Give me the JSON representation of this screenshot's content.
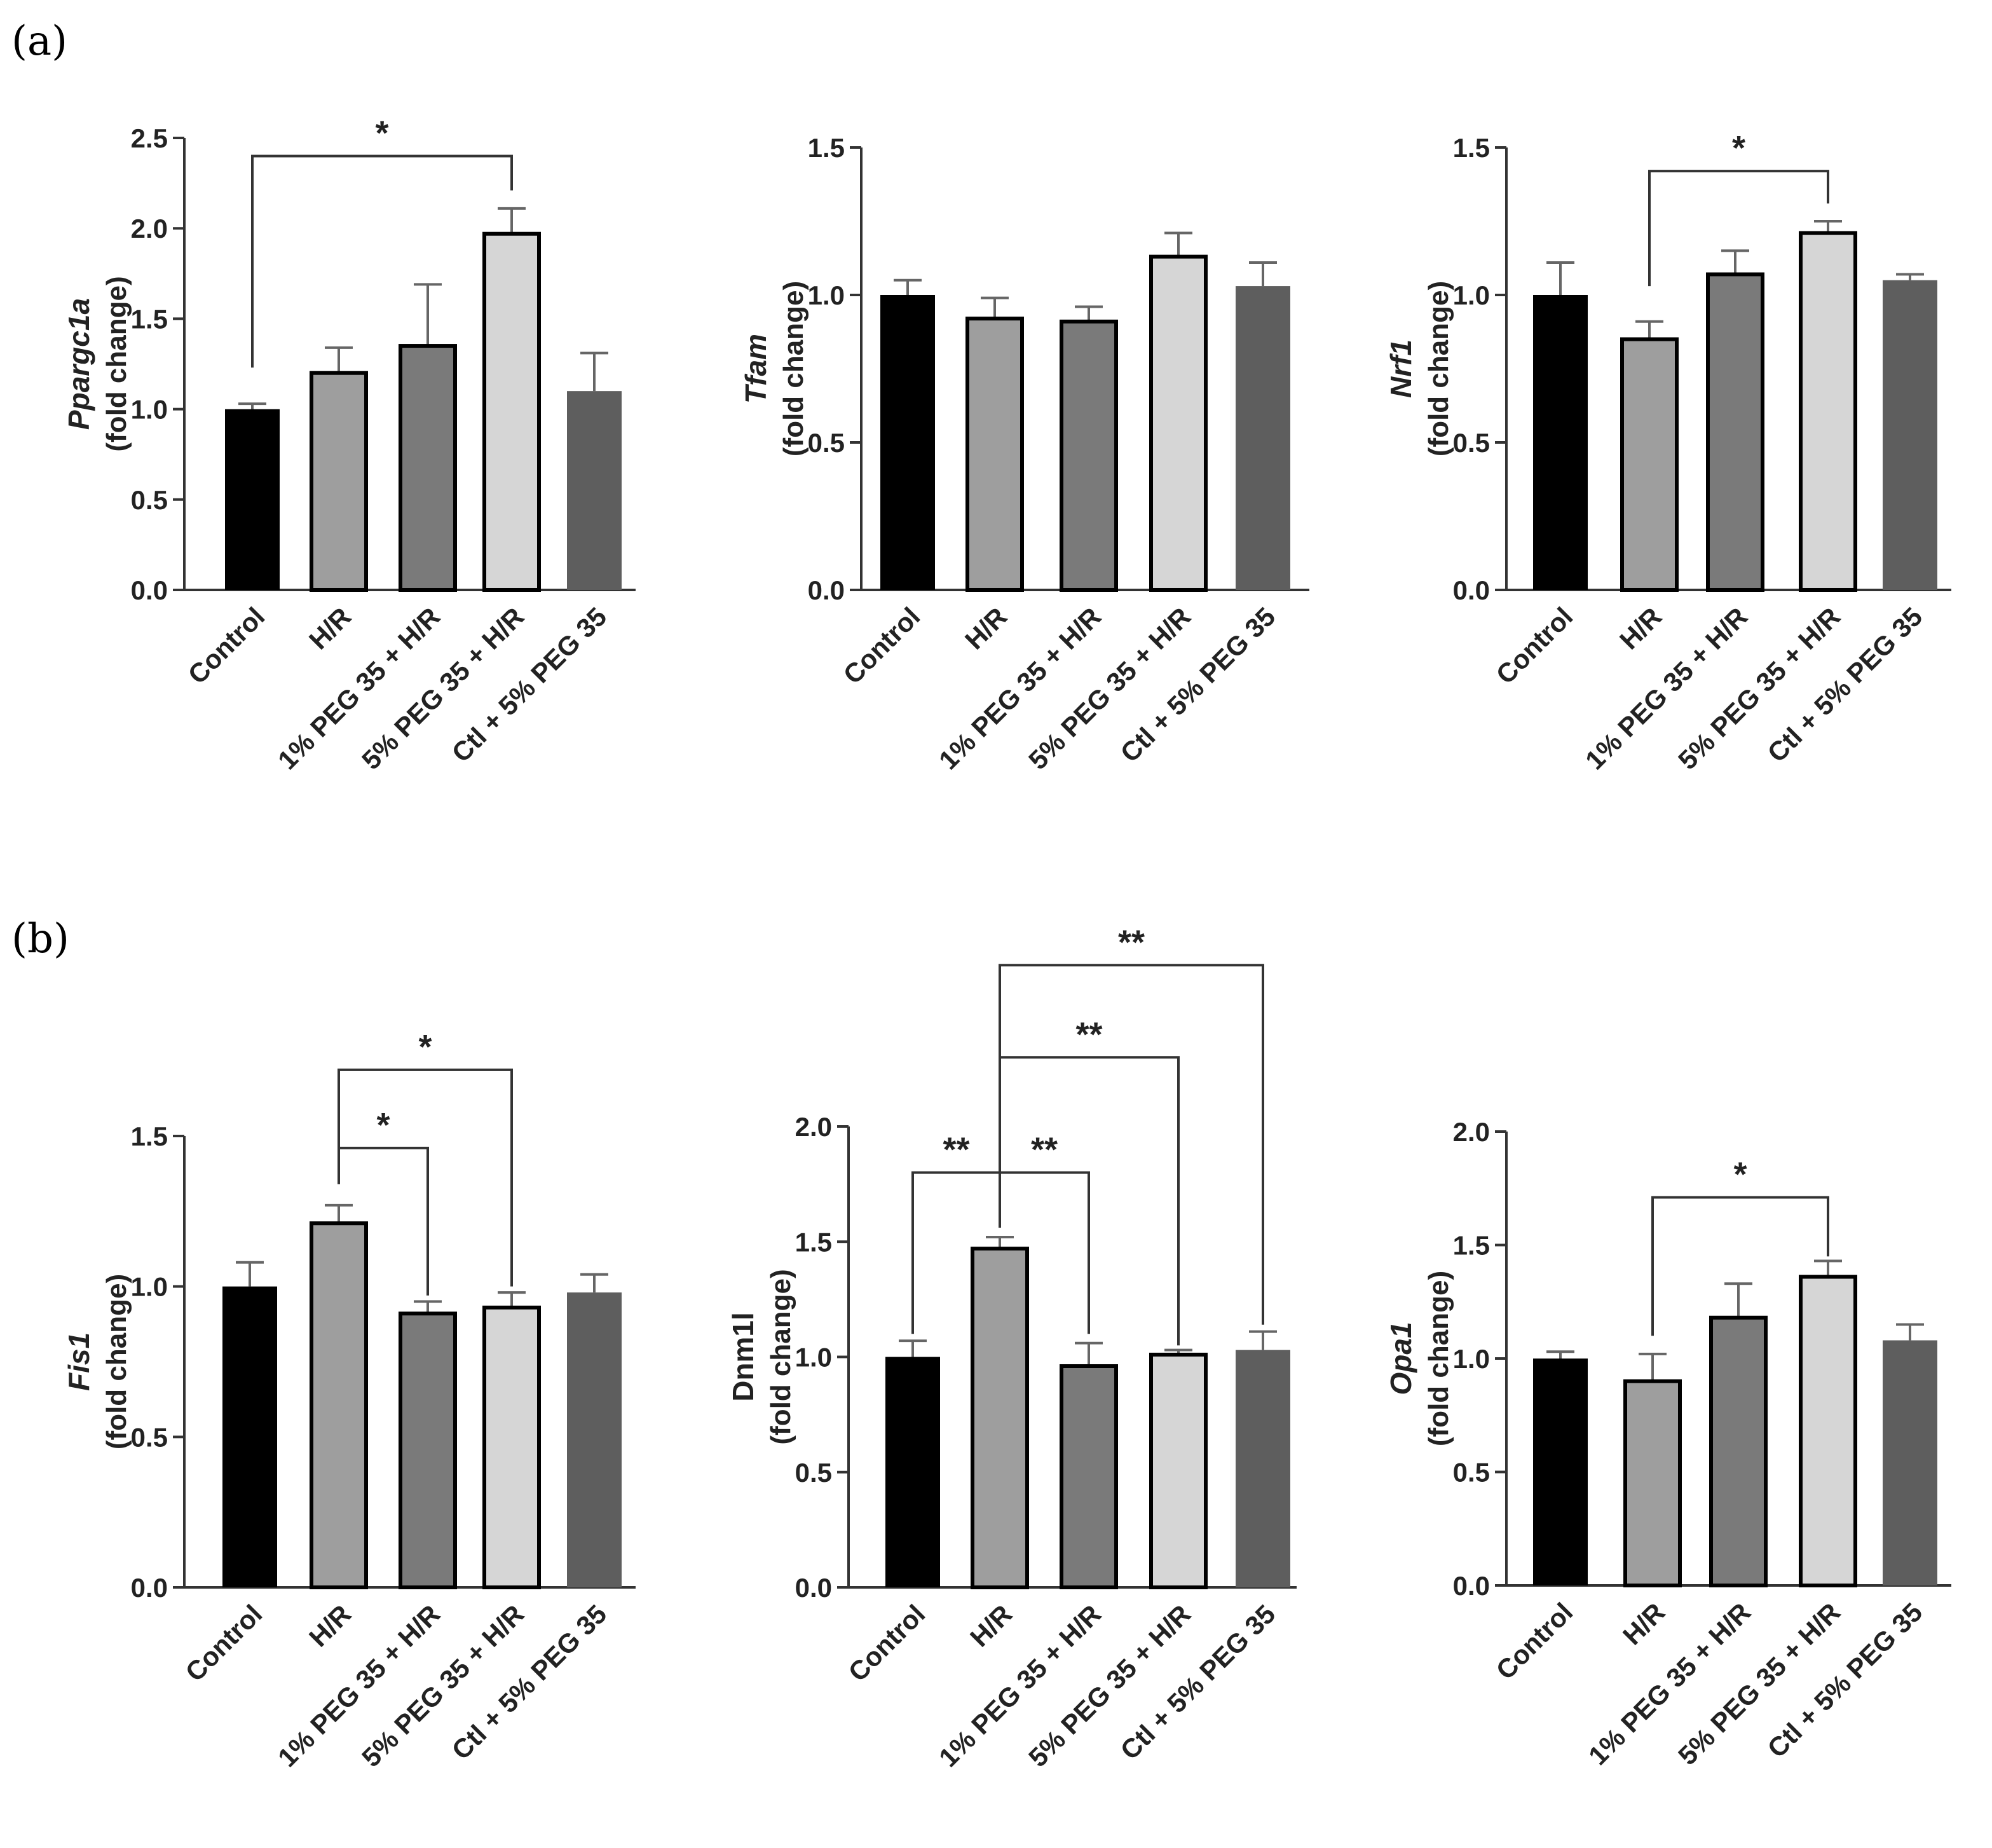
{
  "panels": [
    {
      "label": "(a)"
    },
    {
      "label": "(b)"
    }
  ],
  "bar_colors": [
    "#000000",
    "#9e9e9e",
    "#7a7a7a",
    "#d6d6d6",
    "#5e5e5e"
  ],
  "outline_color": "#000000",
  "chart_data": [
    {
      "type": "bar",
      "panel": "(a)",
      "gene": "Ppargc1a",
      "gene_italic": true,
      "ylabel_unit": "(fold change)",
      "categories": [
        "Control",
        "H/R",
        "1% PEG 35 + H/R",
        "5% PEG 35 + H/R",
        "Ctl + 5% PEG 35"
      ],
      "values": [
        1.0,
        1.2,
        1.35,
        1.97,
        1.1
      ],
      "errors": [
        0.03,
        0.14,
        0.34,
        0.14,
        0.21
      ],
      "outlined": [
        false,
        true,
        true,
        true,
        false
      ],
      "ylim": [
        0,
        2.5
      ],
      "yticks": [
        "0.0",
        "0.5",
        "1.0",
        "1.5",
        "2.0",
        "2.5"
      ],
      "significance": [
        {
          "from": 0,
          "to": 3,
          "label": "*",
          "level": 2.4
        }
      ]
    },
    {
      "type": "bar",
      "panel": "(a)",
      "gene": "Tfam",
      "gene_italic": true,
      "ylabel_unit": "(fold change)",
      "categories": [
        "Control",
        "H/R",
        "1% PEG 35 + H/R",
        "5% PEG 35 + H/R",
        "Ctl + 5% PEG 35"
      ],
      "values": [
        1.0,
        0.92,
        0.91,
        1.13,
        1.03
      ],
      "errors": [
        0.05,
        0.07,
        0.05,
        0.08,
        0.08
      ],
      "outlined": [
        false,
        true,
        true,
        true,
        false
      ],
      "ylim": [
        0,
        1.5
      ],
      "yticks": [
        "0.0",
        "0.5",
        "1.0",
        "1.5"
      ],
      "significance": []
    },
    {
      "type": "bar",
      "panel": "(a)",
      "gene": "Nrf1",
      "gene_italic": true,
      "ylabel_unit": "(fold change)",
      "categories": [
        "Control",
        "H/R",
        "1% PEG 35 + H/R",
        "5% PEG 35 + H/R",
        "Ctl + 5% PEG 35"
      ],
      "values": [
        1.0,
        0.85,
        1.07,
        1.21,
        1.05
      ],
      "errors": [
        0.11,
        0.06,
        0.08,
        0.04,
        0.02
      ],
      "outlined": [
        false,
        true,
        true,
        true,
        false
      ],
      "ylim": [
        0,
        1.5
      ],
      "yticks": [
        "0.0",
        "0.5",
        "1.0",
        "1.5"
      ],
      "significance": [
        {
          "from": 1,
          "to": 3,
          "label": "*",
          "level": 1.42
        }
      ]
    },
    {
      "type": "bar",
      "panel": "(b)",
      "gene": "Fis1",
      "gene_italic": true,
      "ylabel_unit": "(fold change)",
      "categories": [
        "Control",
        "H/R",
        "1% PEG 35 + H/R",
        "5% PEG 35 + H/R",
        "Ctl + 5% PEG 35"
      ],
      "values": [
        1.0,
        1.21,
        0.91,
        0.93,
        0.98
      ],
      "errors": [
        0.08,
        0.06,
        0.04,
        0.05,
        0.06
      ],
      "outlined": [
        false,
        true,
        true,
        true,
        false
      ],
      "ylim": [
        0,
        1.5
      ],
      "yticks": [
        "0.0",
        "0.5",
        "1.0",
        "1.5"
      ],
      "significance": [
        {
          "from": 1,
          "to": 2,
          "label": "*",
          "level": 1.46,
          "drop_from": 1.34,
          "drop_to": 0.97
        },
        {
          "from": 1,
          "to": 3,
          "label": "*",
          "level": 1.72,
          "drop_from": 1.34,
          "drop_to": 1.0
        }
      ]
    },
    {
      "type": "bar",
      "panel": "(b)",
      "gene": "Dnm1l",
      "gene_italic": false,
      "ylabel_unit": "(fold change)",
      "categories": [
        "Control",
        "H/R",
        "1% PEG 35 + H/R",
        "5% PEG 35 + H/R",
        "Ctl + 5% PEG 35"
      ],
      "values": [
        1.0,
        1.47,
        0.96,
        1.01,
        1.03
      ],
      "errors": [
        0.07,
        0.05,
        0.1,
        0.02,
        0.08
      ],
      "outlined": [
        false,
        true,
        true,
        true,
        false
      ],
      "ylim": [
        0,
        2.0
      ],
      "yticks": [
        "0.0",
        "0.5",
        "1.0",
        "1.5",
        "2.0"
      ],
      "significance": [
        {
          "from": 0,
          "to": 1,
          "label": "**",
          "level": 1.8,
          "drop_from": 1.1,
          "drop_to": 1.56
        },
        {
          "from": 1,
          "to": 2,
          "label": "**",
          "level": 1.8,
          "drop_from": 1.56,
          "drop_to": 1.1
        },
        {
          "from": 1,
          "to": 3,
          "label": "**",
          "level": 2.3,
          "drop_from": 1.62,
          "drop_to": 1.05
        },
        {
          "from": 1,
          "to": 4,
          "label": "**",
          "level": 2.7,
          "drop_from": 1.62,
          "drop_to": 1.14
        }
      ]
    },
    {
      "type": "bar",
      "panel": "(b)",
      "gene": "Opa1",
      "gene_italic": true,
      "ylabel_unit": "(fold change)",
      "categories": [
        "Control",
        "H/R",
        "1% PEG 35 + H/R",
        "5% PEG 35 + H/R",
        "Ctl + 5% PEG 35"
      ],
      "values": [
        1.0,
        0.9,
        1.18,
        1.36,
        1.08
      ],
      "errors": [
        0.03,
        0.12,
        0.15,
        0.07,
        0.07
      ],
      "outlined": [
        false,
        true,
        true,
        true,
        false
      ],
      "ylim": [
        0,
        2.0
      ],
      "yticks": [
        "0.0",
        "0.5",
        "1.0",
        "1.5",
        "2.0"
      ],
      "significance": [
        {
          "from": 1,
          "to": 3,
          "label": "*",
          "level": 1.71,
          "drop_from": 1.1,
          "drop_to": 1.45
        }
      ]
    }
  ]
}
